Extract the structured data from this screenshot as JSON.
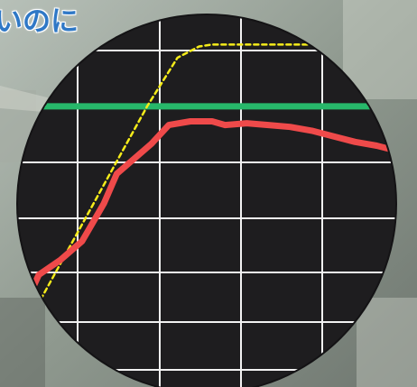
{
  "header": {
    "headline_fragment": "いのに"
  },
  "colors": {
    "scope_background": "#1e1d1f",
    "grid": "#f2f2f2",
    "reference_line": "#27b86a",
    "dashed_curve": "#f5ec1a",
    "measured_curve": "#ef4a4a",
    "headline_text": "#2f78c6"
  },
  "chart_data": {
    "type": "line",
    "title": "",
    "xlabel": "",
    "ylabel": "",
    "grid": true,
    "xlim": [
      0,
      10
    ],
    "ylim": [
      0,
      10
    ],
    "series": [
      {
        "line_style": "solid",
        "color": "#27b86a",
        "x": [
          0,
          10
        ],
        "y": [
          7.4,
          7.4
        ]
      },
      {
        "line_style": "dashed",
        "color": "#f5ec1a",
        "x": [
          0.5,
          1.5,
          2.5,
          3.5,
          4.2,
          4.7,
          5.0,
          5.5,
          6.5,
          7.5,
          8.5,
          9.0
        ],
        "y": [
          1.1,
          3.2,
          5.3,
          7.4,
          8.7,
          9.0,
          9.05,
          9.05,
          9.05,
          9.05,
          9.05,
          9.05
        ]
      },
      {
        "line_style": "solid",
        "color": "#ef4a4a",
        "x": [
          0.2,
          0.6,
          1.0,
          1.5,
          2.0,
          2.5,
          2.8,
          3.2,
          3.6,
          4.0,
          4.5,
          5.0,
          5.3,
          5.8,
          6.3,
          6.8,
          7.3,
          7.8,
          8.3,
          8.8,
          9.3,
          9.6,
          10.0
        ],
        "y": [
          1.2,
          1.9,
          2.9,
          3.3,
          3.8,
          4.8,
          5.6,
          6.0,
          6.4,
          6.9,
          7.0,
          7.0,
          6.9,
          6.95,
          6.9,
          6.85,
          6.75,
          6.6,
          6.45,
          6.35,
          6.2,
          6.15,
          6.0
        ]
      }
    ]
  }
}
